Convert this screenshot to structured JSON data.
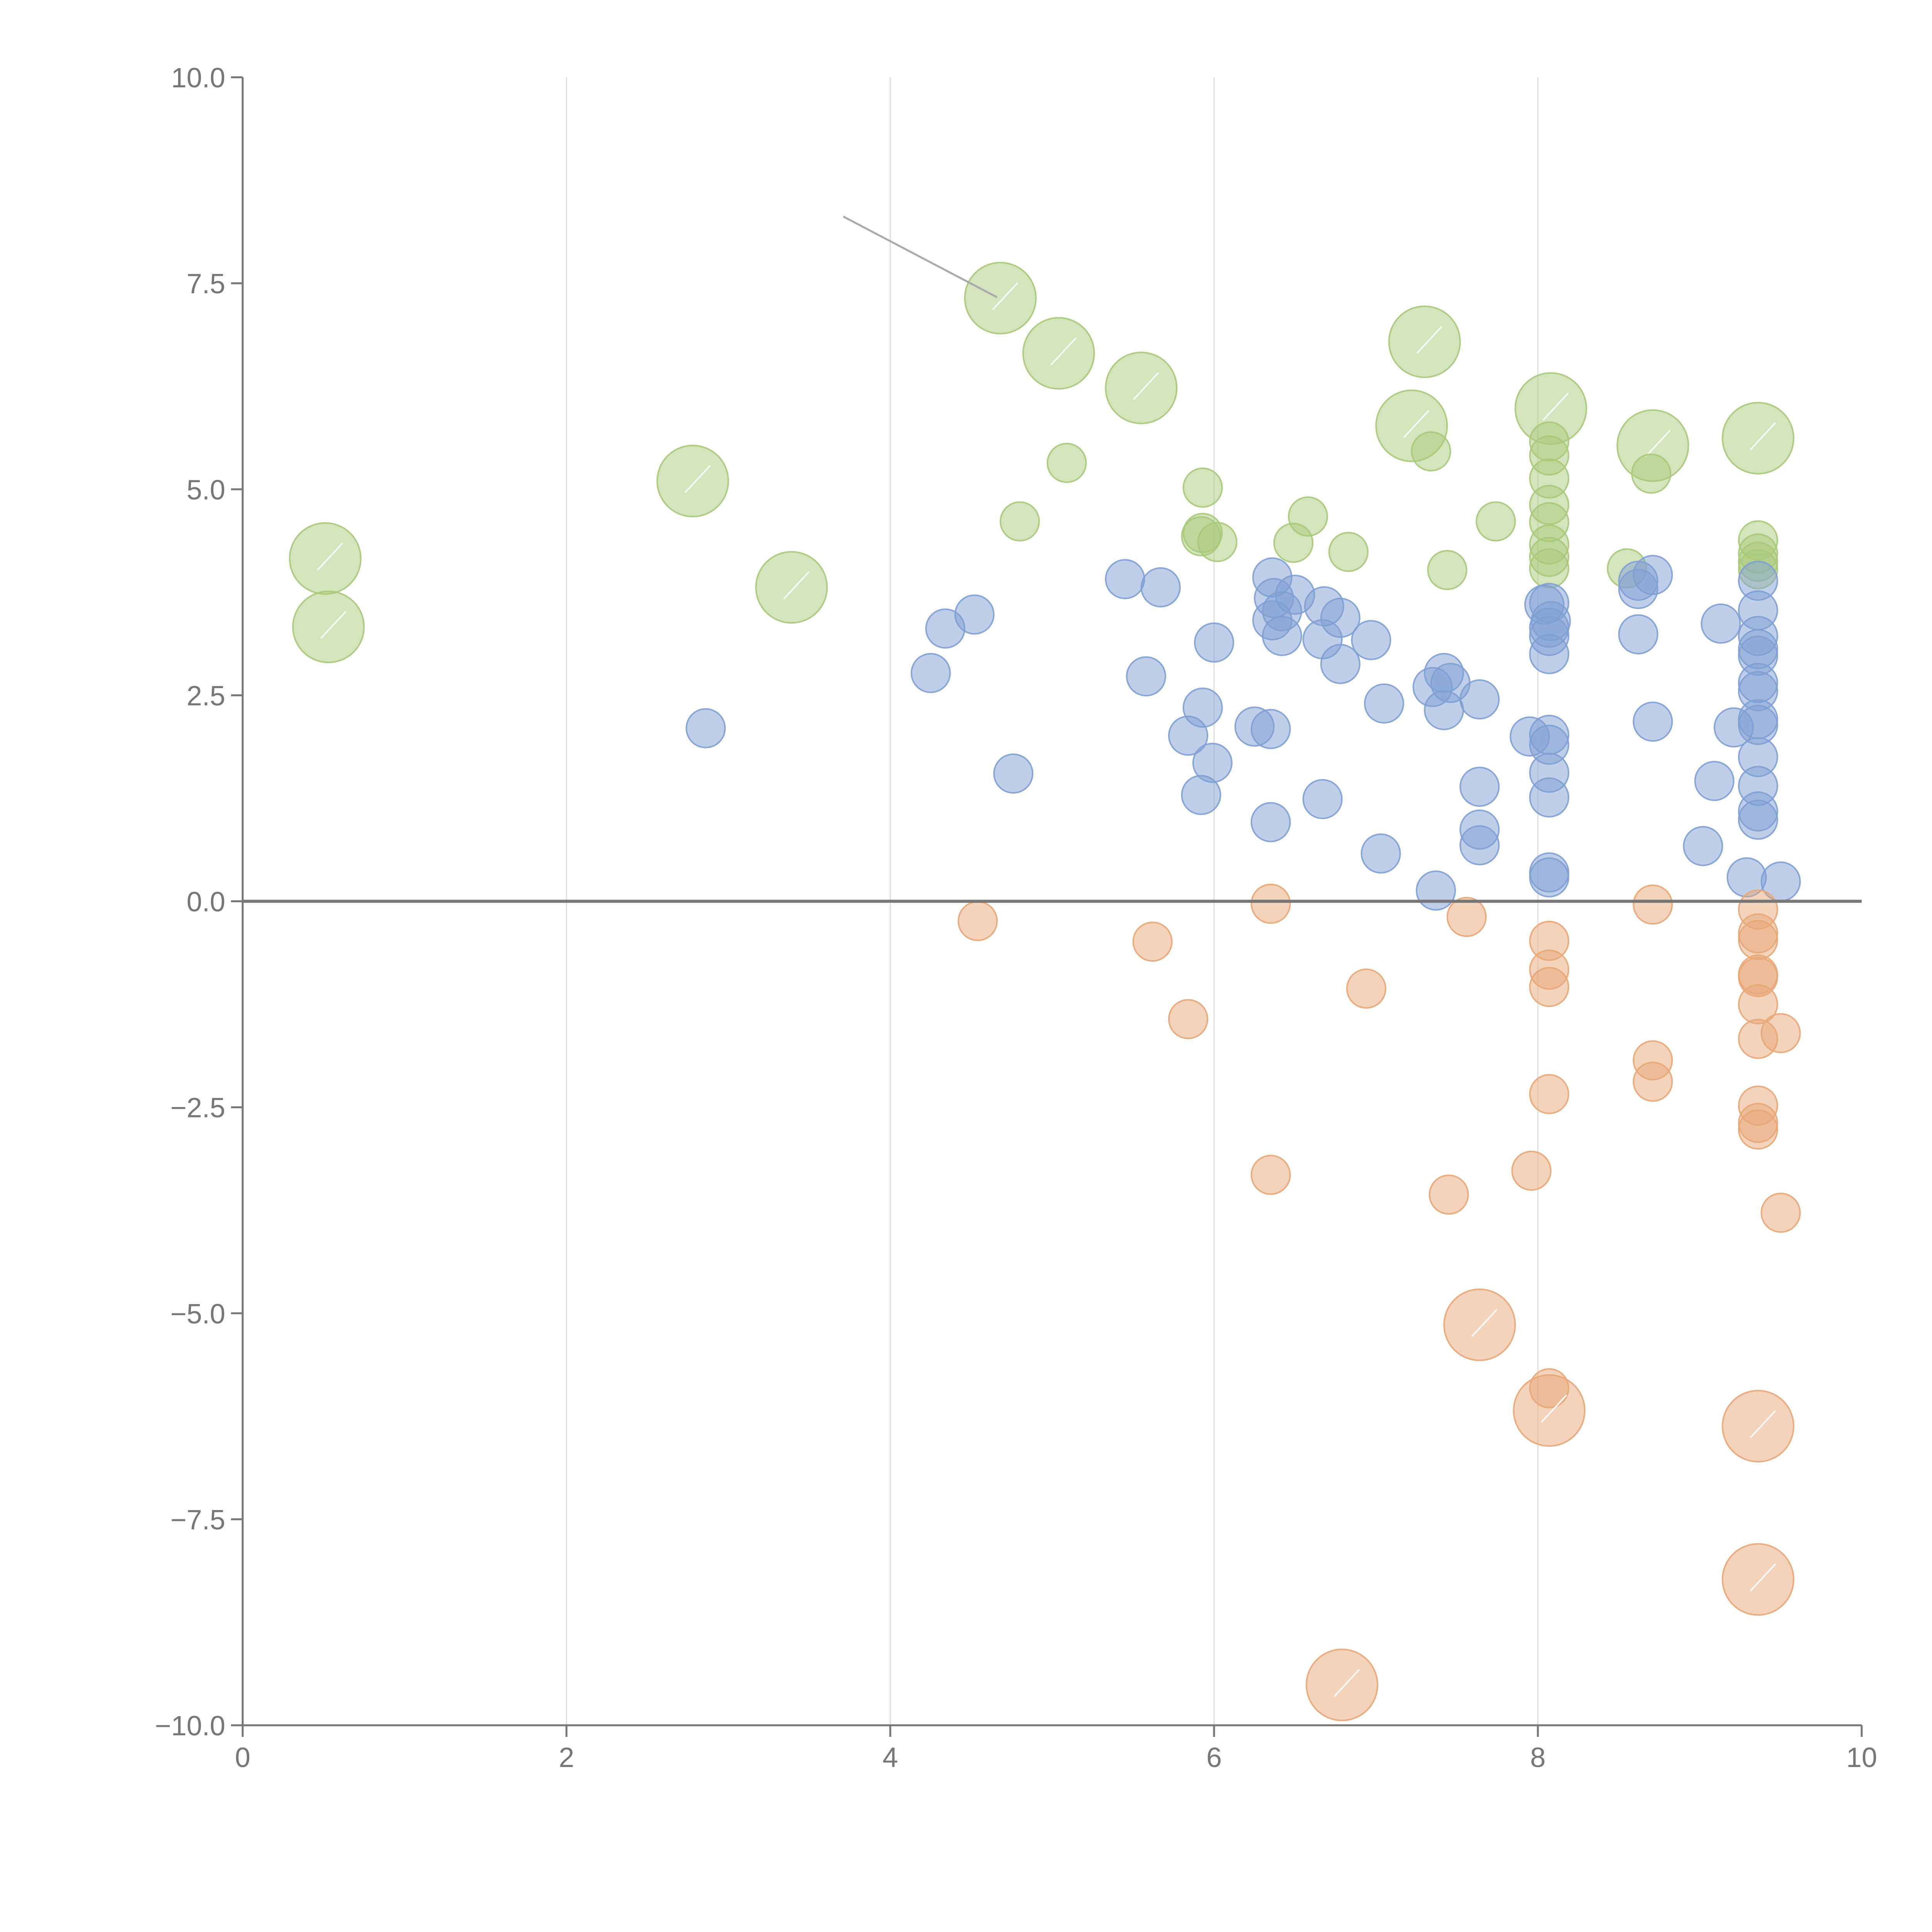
{
  "chart_data": {
    "type": "scatter",
    "title": "",
    "xlabel": "",
    "ylabel": "",
    "xlim": [
      0,
      10
    ],
    "ylim": [
      -10,
      10
    ],
    "x_ticks": [
      "0",
      "2",
      "4",
      "6",
      "8",
      "10"
    ],
    "x_tick_values": [
      0,
      2,
      4,
      6,
      8,
      10
    ],
    "y_ticks": [
      "10.0",
      "7.5",
      "5.0",
      "2.5",
      "0.0",
      "−2.5",
      "−5.0",
      "−7.5",
      "−10.0"
    ],
    "y_tick_values": [
      10,
      7.5,
      5,
      2.5,
      0,
      -2.5,
      -5,
      -7.5,
      -10
    ],
    "grid": "vertical",
    "zero_line": true,
    "series": [
      {
        "name": "green",
        "color": "#a9c97a",
        "points": [
          [
            4.68,
            7.32,
            3
          ],
          [
            5.04,
            6.65,
            3
          ],
          [
            5.55,
            6.23,
            3
          ],
          [
            7.3,
            6.79,
            3
          ],
          [
            7.22,
            5.77,
            3
          ],
          [
            8.08,
            5.98,
            3
          ],
          [
            8.71,
            5.53,
            3
          ],
          [
            9.36,
            5.62,
            3
          ],
          [
            2.78,
            5.1,
            3
          ],
          [
            0.51,
            4.16,
            3
          ],
          [
            0.53,
            3.33,
            3
          ],
          [
            3.39,
            3.81,
            3
          ],
          [
            5.09,
            5.32,
            1
          ],
          [
            7.34,
            5.46,
            1
          ],
          [
            8.07,
            5.58,
            1
          ],
          [
            8.07,
            5.41,
            1
          ],
          [
            8.07,
            5.13,
            1
          ],
          [
            8.07,
            4.81,
            1
          ],
          [
            8.07,
            4.6,
            1
          ],
          [
            8.07,
            4.33,
            1
          ],
          [
            8.07,
            4.18,
            1
          ],
          [
            8.07,
            4.04,
            1
          ],
          [
            8.7,
            5.19,
            1
          ],
          [
            5.93,
            5.02,
            1
          ],
          [
            4.8,
            4.61,
            1
          ],
          [
            6.58,
            4.67,
            1
          ],
          [
            7.74,
            4.61,
            1
          ],
          [
            5.93,
            4.47,
            1
          ],
          [
            5.92,
            4.43,
            1
          ],
          [
            6.02,
            4.36,
            1
          ],
          [
            6.49,
            4.35,
            1
          ],
          [
            6.83,
            4.24,
            1
          ],
          [
            7.44,
            4.02,
            1
          ],
          [
            8.55,
            4.04,
            1
          ],
          [
            9.36,
            4.38,
            1
          ],
          [
            9.36,
            4.22,
            1
          ],
          [
            9.36,
            4.12,
            1
          ],
          [
            9.36,
            4.03,
            1
          ]
        ]
      },
      {
        "name": "blue",
        "color": "#7fa0d3",
        "points": [
          [
            2.86,
            2.1,
            1
          ],
          [
            4.25,
            2.77,
            1
          ],
          [
            4.34,
            3.31,
            1
          ],
          [
            4.52,
            3.48,
            1
          ],
          [
            4.76,
            1.55,
            1
          ],
          [
            5.45,
            3.91,
            1
          ],
          [
            5.67,
            3.81,
            1
          ],
          [
            5.58,
            2.73,
            1
          ],
          [
            5.84,
            2.01,
            1
          ],
          [
            5.93,
            2.35,
            1
          ],
          [
            5.92,
            1.29,
            1
          ],
          [
            5.99,
            1.68,
            1
          ],
          [
            6.0,
            3.14,
            1
          ],
          [
            6.25,
            2.12,
            1
          ],
          [
            6.35,
            2.09,
            1
          ],
          [
            6.35,
            0.96,
            1
          ],
          [
            6.36,
            3.93,
            1
          ],
          [
            6.37,
            3.68,
            1
          ],
          [
            6.36,
            3.41,
            1
          ],
          [
            6.42,
            3.52,
            1
          ],
          [
            6.42,
            3.22,
            1
          ],
          [
            6.5,
            3.72,
            1
          ],
          [
            6.67,
            3.18,
            1
          ],
          [
            6.68,
            3.58,
            1
          ],
          [
            6.78,
            3.44,
            1
          ],
          [
            6.78,
            2.88,
            1
          ],
          [
            6.67,
            1.24,
            1
          ],
          [
            6.97,
            3.17,
            1
          ],
          [
            7.05,
            2.4,
            1
          ],
          [
            7.03,
            0.58,
            1
          ],
          [
            7.35,
            2.6,
            1
          ],
          [
            7.37,
            0.13,
            1
          ],
          [
            7.42,
            2.77,
            1
          ],
          [
            7.42,
            2.32,
            1
          ],
          [
            7.46,
            2.65,
            1
          ],
          [
            7.64,
            2.45,
            1
          ],
          [
            7.64,
            1.39,
            1
          ],
          [
            7.64,
            0.87,
            1
          ],
          [
            7.64,
            0.68,
            1
          ],
          [
            7.95,
            2.0,
            1
          ],
          [
            8.07,
            3.62,
            1
          ],
          [
            8.04,
            3.6,
            1
          ],
          [
            8.08,
            3.4,
            1
          ],
          [
            8.07,
            3.32,
            1
          ],
          [
            8.07,
            3.22,
            1
          ],
          [
            8.07,
            3.0,
            1
          ],
          [
            8.07,
            2.02,
            1
          ],
          [
            8.07,
            1.9,
            1
          ],
          [
            8.07,
            1.56,
            1
          ],
          [
            8.07,
            1.26,
            1
          ],
          [
            8.07,
            0.35,
            1
          ],
          [
            8.07,
            0.29,
            1
          ],
          [
            8.62,
            3.89,
            1
          ],
          [
            8.62,
            3.79,
            1
          ],
          [
            8.62,
            3.24,
            1
          ],
          [
            8.71,
            3.96,
            1
          ],
          [
            8.71,
            2.18,
            1
          ],
          [
            9.02,
            0.67,
            1
          ],
          [
            9.09,
            1.46,
            1
          ],
          [
            9.13,
            3.37,
            1
          ],
          [
            9.21,
            2.11,
            1
          ],
          [
            9.29,
            0.29,
            1
          ],
          [
            9.36,
            3.89,
            1
          ],
          [
            9.36,
            3.53,
            1
          ],
          [
            9.36,
            3.22,
            1
          ],
          [
            9.36,
            3.06,
            1
          ],
          [
            9.36,
            2.98,
            1
          ],
          [
            9.36,
            2.65,
            1
          ],
          [
            9.36,
            2.55,
            1
          ],
          [
            9.36,
            2.21,
            1
          ],
          [
            9.36,
            2.14,
            1
          ],
          [
            9.36,
            1.75,
            1
          ],
          [
            9.36,
            1.4,
            1
          ],
          [
            9.36,
            1.09,
            1
          ],
          [
            9.36,
            0.99,
            1
          ],
          [
            9.5,
            0.24,
            1
          ]
        ]
      },
      {
        "name": "orange",
        "color": "#e8a777",
        "points": [
          [
            4.54,
            -0.24,
            1
          ],
          [
            5.62,
            -0.49,
            1
          ],
          [
            5.84,
            -1.43,
            1
          ],
          [
            6.35,
            -0.03,
            1
          ],
          [
            6.35,
            -3.32,
            1
          ],
          [
            6.94,
            -1.06,
            1
          ],
          [
            7.45,
            -3.56,
            1
          ],
          [
            7.56,
            -0.19,
            1
          ],
          [
            7.96,
            -3.27,
            1
          ],
          [
            8.07,
            -0.48,
            1
          ],
          [
            8.07,
            -0.83,
            1
          ],
          [
            8.07,
            -1.04,
            1
          ],
          [
            8.07,
            -2.34,
            1
          ],
          [
            8.07,
            -5.91,
            1
          ],
          [
            8.71,
            -0.04,
            1
          ],
          [
            8.71,
            -1.93,
            1
          ],
          [
            8.71,
            -2.19,
            1
          ],
          [
            9.36,
            -0.1,
            1
          ],
          [
            9.36,
            -0.39,
            1
          ],
          [
            9.36,
            -0.47,
            1
          ],
          [
            9.36,
            -0.89,
            1
          ],
          [
            9.36,
            -0.92,
            1
          ],
          [
            9.36,
            -1.25,
            1
          ],
          [
            9.36,
            -1.67,
            1
          ],
          [
            9.36,
            -2.48,
            1
          ],
          [
            9.36,
            -2.69,
            1
          ],
          [
            9.36,
            -2.77,
            1
          ],
          [
            9.5,
            -1.6,
            1
          ],
          [
            9.5,
            -3.78,
            1
          ],
          [
            7.64,
            -5.14,
            3
          ],
          [
            8.07,
            -6.18,
            3
          ],
          [
            9.36,
            -6.37,
            3
          ],
          [
            9.36,
            -8.23,
            3
          ],
          [
            6.79,
            -9.51,
            3
          ]
        ]
      }
    ]
  }
}
